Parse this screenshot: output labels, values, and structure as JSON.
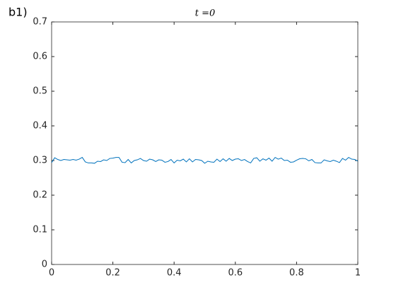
{
  "chart_data": {
    "type": "line",
    "title": "t =0",
    "panel_label": "b1)",
    "x": [
      0,
      0.01,
      0.02,
      0.03,
      0.04,
      0.05,
      0.06,
      0.07,
      0.08,
      0.09,
      0.1,
      0.11,
      0.12,
      0.13,
      0.14,
      0.15,
      0.16,
      0.17,
      0.18,
      0.19,
      0.2,
      0.21,
      0.22,
      0.23,
      0.24,
      0.25,
      0.26,
      0.27,
      0.28,
      0.29,
      0.3,
      0.31,
      0.32,
      0.33,
      0.34,
      0.35,
      0.36,
      0.37,
      0.38,
      0.39,
      0.4,
      0.41,
      0.42,
      0.43,
      0.44,
      0.45,
      0.46,
      0.47,
      0.48,
      0.49,
      0.5,
      0.51,
      0.52,
      0.53,
      0.54,
      0.55,
      0.56,
      0.57,
      0.58,
      0.59,
      0.6,
      0.61,
      0.62,
      0.63,
      0.64,
      0.65,
      0.66,
      0.67,
      0.68,
      0.69,
      0.7,
      0.71,
      0.72,
      0.73,
      0.74,
      0.75,
      0.76,
      0.77,
      0.78,
      0.79,
      0.8,
      0.81,
      0.82,
      0.83,
      0.84,
      0.85,
      0.86,
      0.87,
      0.88,
      0.89,
      0.9,
      0.91,
      0.92,
      0.93,
      0.94,
      0.95,
      0.96,
      0.97,
      0.98,
      0.99,
      1
    ],
    "series": [
      {
        "color": "#0072bd",
        "values": [
          0.294,
          0.308,
          0.303,
          0.3,
          0.303,
          0.302,
          0.301,
          0.303,
          0.301,
          0.304,
          0.309,
          0.296,
          0.293,
          0.293,
          0.292,
          0.298,
          0.297,
          0.302,
          0.3,
          0.306,
          0.307,
          0.309,
          0.309,
          0.295,
          0.294,
          0.303,
          0.293,
          0.3,
          0.302,
          0.306,
          0.3,
          0.298,
          0.304,
          0.302,
          0.297,
          0.302,
          0.301,
          0.295,
          0.297,
          0.303,
          0.293,
          0.301,
          0.299,
          0.304,
          0.296,
          0.305,
          0.296,
          0.303,
          0.302,
          0.3,
          0.292,
          0.298,
          0.296,
          0.295,
          0.304,
          0.297,
          0.305,
          0.298,
          0.306,
          0.3,
          0.304,
          0.305,
          0.3,
          0.303,
          0.297,
          0.293,
          0.306,
          0.308,
          0.298,
          0.305,
          0.301,
          0.307,
          0.298,
          0.309,
          0.304,
          0.307,
          0.3,
          0.301,
          0.295,
          0.296,
          0.301,
          0.305,
          0.306,
          0.305,
          0.299,
          0.303,
          0.294,
          0.293,
          0.293,
          0.302,
          0.299,
          0.297,
          0.301,
          0.298,
          0.294,
          0.306,
          0.301,
          0.309,
          0.304,
          0.303,
          0.298
        ]
      }
    ],
    "xlim": [
      0,
      1
    ],
    "xticks": [
      0,
      0.2,
      0.4,
      0.6,
      0.8,
      1
    ],
    "ylim": [
      0,
      0.7
    ],
    "yticks": [
      0,
      0.1,
      0.2,
      0.3,
      0.4,
      0.5,
      0.6,
      0.7
    ],
    "grid": false
  }
}
